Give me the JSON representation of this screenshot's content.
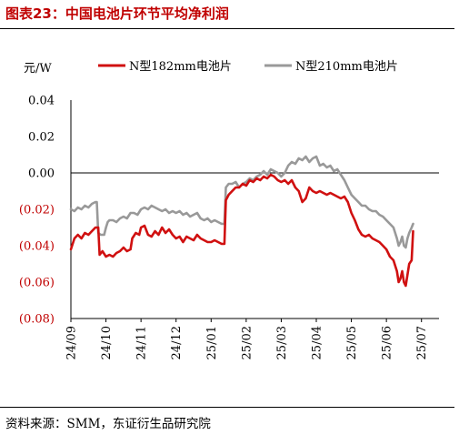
{
  "figure": {
    "title": "图表23：中国电池片环节平均净利润",
    "source": "资料来源：SMM，东证衍生品研究院"
  },
  "colors": {
    "title": "#c00000",
    "series_182": "#d01010",
    "series_210": "#999999",
    "negative_tick": "#c00000",
    "axis": "#000000"
  },
  "chart_data": {
    "type": "line",
    "title": "",
    "xlabel": "",
    "ylabel": "元/W",
    "ylim": [
      -0.08,
      0.04
    ],
    "yticks": [
      {
        "value": 0.04,
        "label": "0.04"
      },
      {
        "value": 0.02,
        "label": "0.02"
      },
      {
        "value": 0.0,
        "label": "0.00"
      },
      {
        "value": -0.02,
        "label": "(0.02)"
      },
      {
        "value": -0.04,
        "label": "(0.04)"
      },
      {
        "value": -0.06,
        "label": "(0.06)"
      },
      {
        "value": -0.08,
        "label": "(0.08)"
      }
    ],
    "xticks": [
      "24/09",
      "24/10",
      "24/11",
      "24/12",
      "25/01",
      "25/02",
      "25/03",
      "25/04",
      "25/05",
      "25/06",
      "25/07"
    ],
    "xlim": [
      0,
      10.5
    ],
    "grid": false,
    "legend": "top",
    "series": [
      {
        "name": "N型182mm电池片",
        "points": [
          [
            0.0,
            -0.042
          ],
          [
            0.1,
            -0.036
          ],
          [
            0.2,
            -0.034
          ],
          [
            0.3,
            -0.036
          ],
          [
            0.4,
            -0.033
          ],
          [
            0.5,
            -0.034
          ],
          [
            0.6,
            -0.032
          ],
          [
            0.7,
            -0.03
          ],
          [
            0.78,
            -0.03
          ],
          [
            0.82,
            -0.045
          ],
          [
            0.9,
            -0.043
          ],
          [
            1.0,
            -0.046
          ],
          [
            1.1,
            -0.045
          ],
          [
            1.2,
            -0.046
          ],
          [
            1.3,
            -0.044
          ],
          [
            1.4,
            -0.043
          ],
          [
            1.5,
            -0.041
          ],
          [
            1.6,
            -0.043
          ],
          [
            1.7,
            -0.042
          ],
          [
            1.75,
            -0.036
          ],
          [
            1.85,
            -0.033
          ],
          [
            1.95,
            -0.034
          ],
          [
            2.0,
            -0.03
          ],
          [
            2.1,
            -0.029
          ],
          [
            2.2,
            -0.034
          ],
          [
            2.3,
            -0.035
          ],
          [
            2.4,
            -0.032
          ],
          [
            2.5,
            -0.034
          ],
          [
            2.6,
            -0.03
          ],
          [
            2.7,
            -0.033
          ],
          [
            2.8,
            -0.031
          ],
          [
            2.9,
            -0.034
          ],
          [
            3.0,
            -0.036
          ],
          [
            3.1,
            -0.035
          ],
          [
            3.2,
            -0.038
          ],
          [
            3.3,
            -0.035
          ],
          [
            3.4,
            -0.036
          ],
          [
            3.5,
            -0.037
          ],
          [
            3.6,
            -0.034
          ],
          [
            3.7,
            -0.036
          ],
          [
            3.8,
            -0.037
          ],
          [
            3.9,
            -0.038
          ],
          [
            4.0,
            -0.038
          ],
          [
            4.1,
            -0.037
          ],
          [
            4.2,
            -0.038
          ],
          [
            4.3,
            -0.039
          ],
          [
            4.38,
            -0.039
          ],
          [
            4.42,
            -0.015
          ],
          [
            4.5,
            -0.012
          ],
          [
            4.6,
            -0.01
          ],
          [
            4.7,
            -0.008
          ],
          [
            4.8,
            -0.008
          ],
          [
            4.9,
            -0.006
          ],
          [
            5.0,
            -0.007
          ],
          [
            5.1,
            -0.004
          ],
          [
            5.2,
            -0.005
          ],
          [
            5.3,
            -0.003
          ],
          [
            5.4,
            -0.004
          ],
          [
            5.5,
            -0.002
          ],
          [
            5.6,
            -0.003
          ],
          [
            5.7,
            -0.001
          ],
          [
            5.8,
            -0.002
          ],
          [
            5.9,
            -0.004
          ],
          [
            6.0,
            -0.005
          ],
          [
            6.1,
            -0.004
          ],
          [
            6.2,
            -0.006
          ],
          [
            6.3,
            -0.004
          ],
          [
            6.4,
            -0.008
          ],
          [
            6.5,
            -0.01
          ],
          [
            6.6,
            -0.016
          ],
          [
            6.7,
            -0.014
          ],
          [
            6.8,
            -0.008
          ],
          [
            6.9,
            -0.01
          ],
          [
            7.0,
            -0.011
          ],
          [
            7.1,
            -0.01
          ],
          [
            7.2,
            -0.011
          ],
          [
            7.3,
            -0.012
          ],
          [
            7.4,
            -0.011
          ],
          [
            7.5,
            -0.012
          ],
          [
            7.6,
            -0.013
          ],
          [
            7.7,
            -0.014
          ],
          [
            7.8,
            -0.013
          ],
          [
            7.9,
            -0.016
          ],
          [
            8.0,
            -0.022
          ],
          [
            8.1,
            -0.026
          ],
          [
            8.2,
            -0.031
          ],
          [
            8.3,
            -0.034
          ],
          [
            8.4,
            -0.035
          ],
          [
            8.5,
            -0.034
          ],
          [
            8.6,
            -0.036
          ],
          [
            8.7,
            -0.037
          ],
          [
            8.8,
            -0.038
          ],
          [
            8.9,
            -0.04
          ],
          [
            9.0,
            -0.042
          ],
          [
            9.1,
            -0.046
          ],
          [
            9.2,
            -0.048
          ],
          [
            9.3,
            -0.054
          ],
          [
            9.35,
            -0.06
          ],
          [
            9.4,
            -0.058
          ],
          [
            9.45,
            -0.054
          ],
          [
            9.5,
            -0.06
          ],
          [
            9.55,
            -0.062
          ],
          [
            9.6,
            -0.056
          ],
          [
            9.65,
            -0.05
          ],
          [
            9.72,
            -0.048
          ],
          [
            9.76,
            -0.032
          ]
        ]
      },
      {
        "name": "N型210mm电池片",
        "points": [
          [
            0.0,
            -0.02
          ],
          [
            0.1,
            -0.021
          ],
          [
            0.2,
            -0.019
          ],
          [
            0.3,
            -0.02
          ],
          [
            0.4,
            -0.018
          ],
          [
            0.5,
            -0.019
          ],
          [
            0.6,
            -0.017
          ],
          [
            0.7,
            -0.016
          ],
          [
            0.74,
            -0.016
          ],
          [
            0.78,
            -0.033
          ],
          [
            0.85,
            -0.034
          ],
          [
            0.95,
            -0.034
          ],
          [
            1.0,
            -0.03
          ],
          [
            1.05,
            -0.027
          ],
          [
            1.1,
            -0.026
          ],
          [
            1.2,
            -0.026
          ],
          [
            1.3,
            -0.027
          ],
          [
            1.4,
            -0.025
          ],
          [
            1.5,
            -0.024
          ],
          [
            1.6,
            -0.025
          ],
          [
            1.7,
            -0.022
          ],
          [
            1.8,
            -0.022
          ],
          [
            1.9,
            -0.023
          ],
          [
            2.0,
            -0.02
          ],
          [
            2.1,
            -0.019
          ],
          [
            2.2,
            -0.02
          ],
          [
            2.3,
            -0.018
          ],
          [
            2.4,
            -0.019
          ],
          [
            2.5,
            -0.02
          ],
          [
            2.6,
            -0.021
          ],
          [
            2.7,
            -0.02
          ],
          [
            2.8,
            -0.022
          ],
          [
            2.9,
            -0.021
          ],
          [
            3.0,
            -0.022
          ],
          [
            3.1,
            -0.021
          ],
          [
            3.2,
            -0.023
          ],
          [
            3.3,
            -0.022
          ],
          [
            3.4,
            -0.024
          ],
          [
            3.5,
            -0.023
          ],
          [
            3.6,
            -0.022
          ],
          [
            3.7,
            -0.025
          ],
          [
            3.8,
            -0.026
          ],
          [
            3.9,
            -0.025
          ],
          [
            4.0,
            -0.027
          ],
          [
            4.1,
            -0.026
          ],
          [
            4.2,
            -0.027
          ],
          [
            4.3,
            -0.028
          ],
          [
            4.38,
            -0.028
          ],
          [
            4.42,
            -0.008
          ],
          [
            4.5,
            -0.006
          ],
          [
            4.6,
            -0.006
          ],
          [
            4.7,
            -0.005
          ],
          [
            4.8,
            -0.008
          ],
          [
            4.9,
            -0.006
          ],
          [
            5.0,
            -0.005
          ],
          [
            5.1,
            -0.003
          ],
          [
            5.2,
            -0.004
          ],
          [
            5.3,
            -0.002
          ],
          [
            5.4,
            -0.001
          ],
          [
            5.5,
            0.001
          ],
          [
            5.6,
            -0.001
          ],
          [
            5.7,
            0.002
          ],
          [
            5.8,
            0.001
          ],
          [
            5.9,
            0.0
          ],
          [
            6.0,
            -0.002
          ],
          [
            6.1,
            0.0
          ],
          [
            6.2,
            0.004
          ],
          [
            6.3,
            0.006
          ],
          [
            6.4,
            0.005
          ],
          [
            6.5,
            0.008
          ],
          [
            6.6,
            0.007
          ],
          [
            6.7,
            0.009
          ],
          [
            6.8,
            0.006
          ],
          [
            6.9,
            0.008
          ],
          [
            7.0,
            0.009
          ],
          [
            7.1,
            0.004
          ],
          [
            7.2,
            0.005
          ],
          [
            7.3,
            0.003
          ],
          [
            7.4,
            0.004
          ],
          [
            7.5,
            0.001
          ],
          [
            7.6,
            0.002
          ],
          [
            7.7,
            -0.001
          ],
          [
            7.8,
            -0.004
          ],
          [
            7.9,
            -0.008
          ],
          [
            8.0,
            -0.012
          ],
          [
            8.1,
            -0.014
          ],
          [
            8.2,
            -0.016
          ],
          [
            8.3,
            -0.018
          ],
          [
            8.4,
            -0.018
          ],
          [
            8.5,
            -0.02
          ],
          [
            8.6,
            -0.021
          ],
          [
            8.7,
            -0.021
          ],
          [
            8.8,
            -0.023
          ],
          [
            8.9,
            -0.024
          ],
          [
            9.0,
            -0.026
          ],
          [
            9.1,
            -0.028
          ],
          [
            9.2,
            -0.03
          ],
          [
            9.3,
            -0.036
          ],
          [
            9.35,
            -0.04
          ],
          [
            9.4,
            -0.038
          ],
          [
            9.45,
            -0.035
          ],
          [
            9.5,
            -0.04
          ],
          [
            9.55,
            -0.041
          ],
          [
            9.6,
            -0.036
          ],
          [
            9.65,
            -0.033
          ],
          [
            9.72,
            -0.03
          ],
          [
            9.76,
            -0.028
          ]
        ]
      }
    ]
  }
}
